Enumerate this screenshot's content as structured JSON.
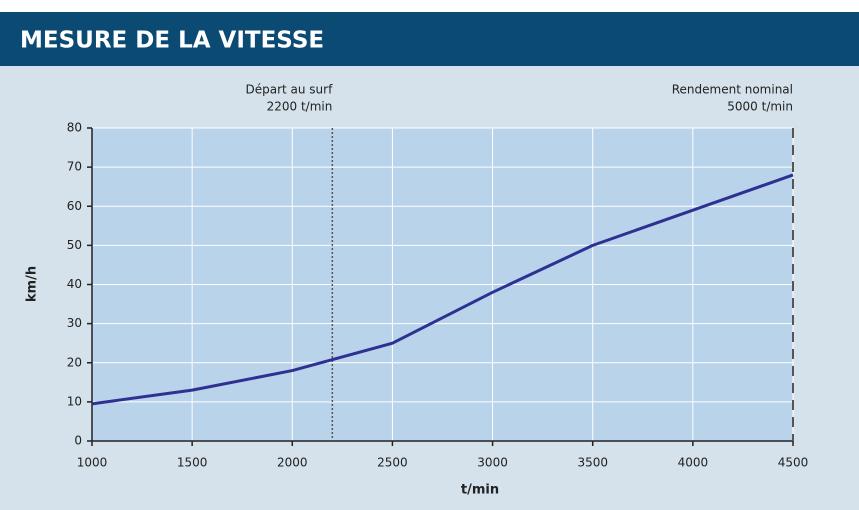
{
  "chart_data": {
    "type": "line",
    "title": "MESURE DE LA VITESSE",
    "x_label": "t/min",
    "y_label": "km/h",
    "x": [
      1000,
      1500,
      2000,
      2500,
      3000,
      3500,
      4000,
      4500
    ],
    "series": [
      {
        "name": "km/h",
        "color": "#2e3192",
        "values": [
          9.5,
          13,
          18,
          25,
          38,
          50,
          59,
          68
        ]
      }
    ],
    "xlim": [
      1000,
      4500
    ],
    "xticks": [
      1000,
      1500,
      2000,
      2500,
      3000,
      3500,
      4000,
      4500
    ],
    "ylim": [
      0,
      80
    ],
    "yticks": [
      0,
      10,
      20,
      30,
      40,
      50,
      60,
      70,
      80
    ],
    "grid": true,
    "annotations": [
      {
        "x": 2200,
        "lines": [
          "Départ au surf",
          "2200 t/min"
        ],
        "style": "dotted"
      },
      {
        "x": 4500,
        "lines": [
          "Rendement nominal",
          "5000 t/min"
        ],
        "style": "dashed"
      }
    ]
  }
}
